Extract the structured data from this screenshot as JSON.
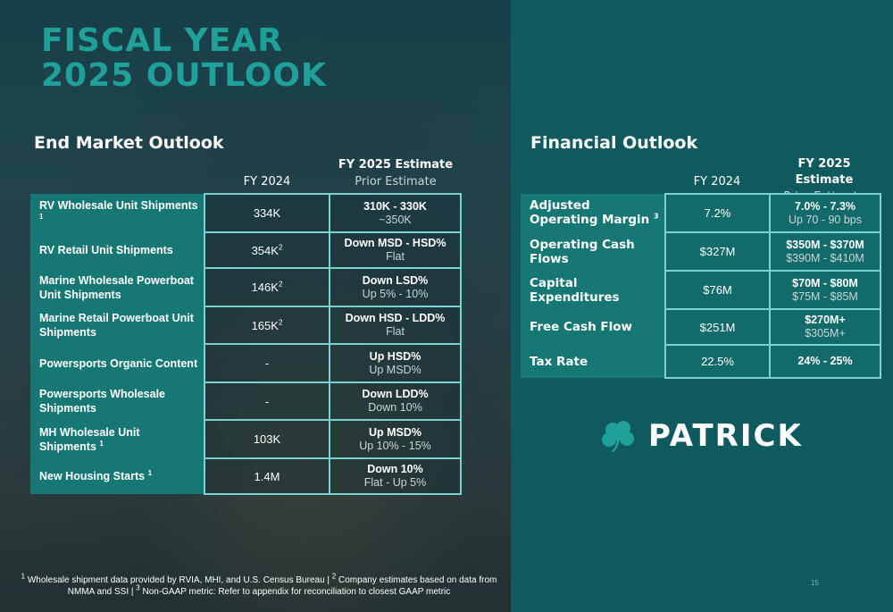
{
  "title": [
    "FISCAL YEAR",
    "2025 OUTLOOK"
  ],
  "end_market": {
    "heading": "End Market Outlook",
    "col_fy": "FY 2024",
    "col_est": "FY 2025 Estimate",
    "col_prior": "Prior Estimate",
    "rows": [
      {
        "label": "RV Wholesale Unit Shipments",
        "sup": "1",
        "fy": "334K",
        "fy_sup": "",
        "est": "310K - 330K",
        "prior": "~350K"
      },
      {
        "label": "RV Retail Unit Shipments",
        "sup": "",
        "fy": "354K",
        "fy_sup": "2",
        "est": "Down MSD - HSD%",
        "prior": "Flat"
      },
      {
        "label": "Marine Wholesale Powerboat Unit Shipments",
        "sup": "",
        "fy": "146K",
        "fy_sup": "2",
        "est": "Down LSD%",
        "prior": "Up 5% - 10%"
      },
      {
        "label": "Marine Retail Powerboat Unit Shipments",
        "sup": "",
        "fy": "165K",
        "fy_sup": "2",
        "est": "Down HSD - LDD%",
        "prior": "Flat"
      },
      {
        "label": "Powersports Organic Content",
        "sup": "",
        "fy": "-",
        "fy_sup": "",
        "est": "Up HSD%",
        "prior": "Up MSD%"
      },
      {
        "label": "Powersports Wholesale Shipments",
        "sup": "",
        "fy": "-",
        "fy_sup": "",
        "est": "Down LDD%",
        "prior": "Down 10%"
      },
      {
        "label": "MH Wholesale Unit Shipments",
        "sup": "1",
        "fy": "103K",
        "fy_sup": "",
        "est": "Up MSD%",
        "prior": "Up 10% - 15%"
      },
      {
        "label": "New Housing Starts",
        "sup": "1",
        "fy": "1.4M",
        "fy_sup": "",
        "est": "Down 10%",
        "prior": "Flat - Up 5%"
      }
    ]
  },
  "financial": {
    "heading": "Financial Outlook",
    "col_fy": "FY 2024",
    "col_est": "FY 2025 Estimate",
    "col_prior": "Prior Estimate",
    "rows": [
      {
        "label": "Adjusted Operating Margin",
        "sup": "3",
        "fy": "7.2%",
        "est": "7.0% - 7.3%",
        "prior": "Up 70 - 90 bps"
      },
      {
        "label": "Operating Cash Flows",
        "sup": "",
        "fy": "$327M",
        "est": "$350M - $370M",
        "prior": "$390M - $410M"
      },
      {
        "label": "Capital Expenditures",
        "sup": "",
        "fy": "$76M",
        "est": "$70M - $80M",
        "prior": "$75M - $85M"
      },
      {
        "label": "Free Cash Flow",
        "sup": "",
        "fy": "$251M",
        "est": "$270M+",
        "prior": "$305M+"
      },
      {
        "label": "Tax Rate",
        "sup": "",
        "fy": "22.5%",
        "est": "24% - 25%",
        "prior": ""
      }
    ]
  },
  "logo": {
    "text": "PATRICK",
    "icon": "shamrock-icon"
  },
  "footnote": {
    "s1": "1",
    "t1": " Wholesale shipment data provided by RVIA, MHI, and U.S. Census Bureau | ",
    "s2": "2",
    "t2": " Company estimates based on data from NMMA and SSI | ",
    "s3": "3",
    "t3": " Non-GAAP metric: Refer to appendix for reconciliation to closest GAAP metric"
  },
  "page_number": "15",
  "colors": {
    "accent": "#1fa19a",
    "panel": "#0f5a5f",
    "label_fill": "#177775",
    "border": "#7ad3cf"
  }
}
